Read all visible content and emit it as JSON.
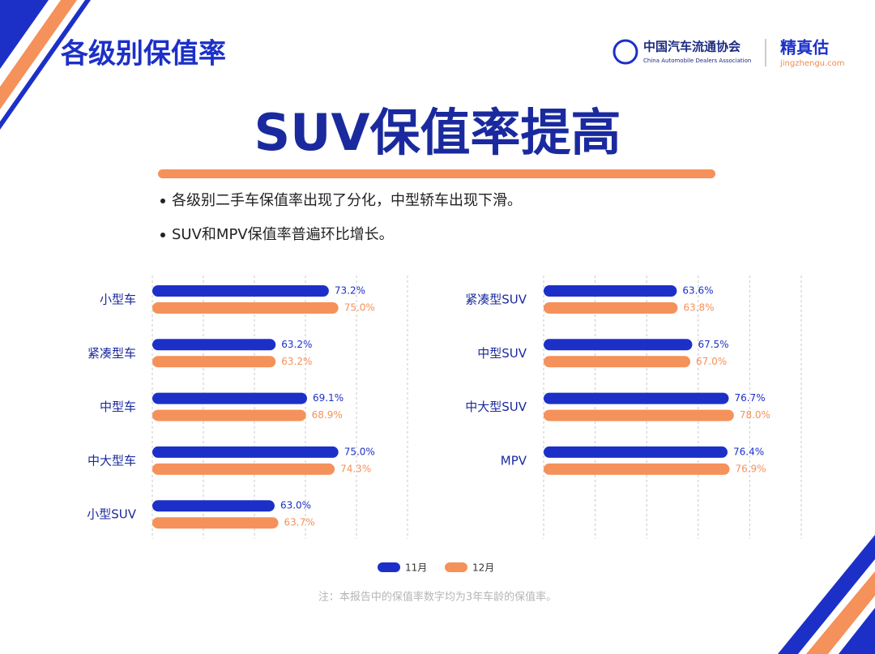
{
  "header": {
    "title": "各级别保值率",
    "logo_cn": "中国汽车流通协会",
    "logo_en": "China Automobile Dealers Association",
    "brand": "精真估",
    "brand_url": "jingzhengu.com"
  },
  "headline": "SUV保值率提高",
  "bullets": [
    "各级别二手车保值率出现了分化，中型轿车出现下滑。",
    "SUV和MPV保值率普遍环比增长。"
  ],
  "chart_data": [
    {
      "type": "bar",
      "orientation": "horizontal",
      "grid": true,
      "categories": [
        "小型车",
        "紧凑型车",
        "中型车",
        "中大型车",
        "小型SUV"
      ],
      "xlim": [
        40,
        88
      ],
      "series": [
        {
          "name": "11月",
          "color": "#1c30c8",
          "values": [
            73.2,
            63.2,
            69.1,
            75.0,
            63.0
          ],
          "value_labels": [
            "73.2%",
            "63.2%",
            "69.1%",
            "75.0%",
            "63.0%"
          ]
        },
        {
          "name": "12月",
          "color": "#f5915a",
          "values": [
            75.0,
            63.2,
            68.9,
            74.3,
            63.7
          ],
          "value_labels": [
            "75.0%",
            "63.2%",
            "68.9%",
            "74.3%",
            "63.7%"
          ]
        }
      ]
    },
    {
      "type": "bar",
      "orientation": "horizontal",
      "grid": true,
      "categories": [
        "紧凑型SUV",
        "中型SUV",
        "中大型SUV",
        "MPV"
      ],
      "xlim": [
        30,
        95
      ],
      "series": [
        {
          "color": "#1c30c8",
          "values": [
            63.6,
            67.5,
            76.7,
            76.4
          ],
          "value_labels": [
            "63.6%",
            "67.5%",
            "76.7%",
            "76.4%"
          ]
        },
        {
          "color": "#f5915a",
          "values": [
            63.8,
            67.0,
            78.0,
            76.9
          ],
          "value_labels": [
            "63.8%",
            "67.0%",
            "78.0%",
            "76.9%"
          ]
        }
      ]
    }
  ],
  "note": "注：本报告中的保值率数字均为3年车龄的保值率。"
}
